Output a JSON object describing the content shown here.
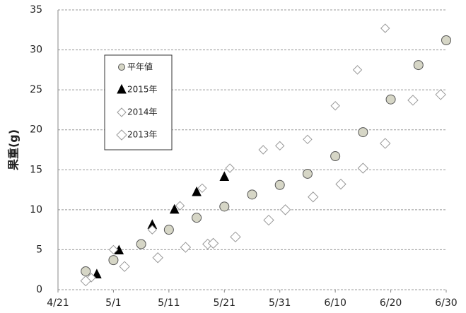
{
  "chart_data": {
    "type": "scatter",
    "y_label": "果重(g)",
    "xlim": [
      "4/21",
      "6/30"
    ],
    "xticks": [
      "4/21",
      "5/1",
      "5/11",
      "5/21",
      "5/31",
      "6/10",
      "6/20",
      "6/30"
    ],
    "ylim": [
      0,
      35
    ],
    "yticks": [
      0,
      5,
      10,
      15,
      20,
      25,
      30,
      35
    ],
    "grid": true,
    "legend": "upper left",
    "series": [
      {
        "name": "平年値",
        "marker": "circle",
        "color": "#d6d6c6",
        "x": [
          "4/26",
          "5/1",
          "5/6",
          "5/11",
          "5/16",
          "5/21",
          "5/26",
          "5/31",
          "6/5",
          "6/10",
          "6/15",
          "6/20",
          "6/25",
          "6/30"
        ],
        "values": [
          2.3,
          3.7,
          5.7,
          7.5,
          9.0,
          10.4,
          11.9,
          13.1,
          14.5,
          16.7,
          19.7,
          23.8,
          28.1,
          31.2
        ]
      },
      {
        "name": "2015年",
        "marker": "triangle",
        "color": "#000000",
        "x": [
          "4/28",
          "5/2",
          "5/8",
          "5/12",
          "5/16",
          "5/21"
        ],
        "values": [
          1.9,
          4.9,
          8.1,
          10.0,
          12.2,
          14.1
        ]
      },
      {
        "name": "2014年",
        "marker": "diamond-small",
        "color": "#ffffff",
        "x": [
          "4/27",
          "5/1",
          "5/8",
          "5/13",
          "5/17",
          "5/22",
          "5/28",
          "5/31",
          "6/5",
          "6/10",
          "6/14",
          "6/19"
        ],
        "values": [
          1.5,
          5.0,
          7.5,
          10.5,
          12.7,
          15.2,
          17.5,
          18.0,
          18.8,
          23.0,
          27.5,
          32.7
        ]
      },
      {
        "name": "2013年",
        "marker": "diamond",
        "color": "#ffffff",
        "x": [
          "4/26",
          "5/3",
          "5/9",
          "5/14",
          "5/18",
          "5/19",
          "5/23",
          "5/29",
          "6/1",
          "6/6",
          "6/11",
          "6/15",
          "6/19",
          "6/24",
          "6/29"
        ],
        "values": [
          1.1,
          2.9,
          4.0,
          5.3,
          5.7,
          5.8,
          6.6,
          8.7,
          10.0,
          11.6,
          13.2,
          15.2,
          18.3,
          23.7,
          24.4
        ]
      }
    ]
  }
}
